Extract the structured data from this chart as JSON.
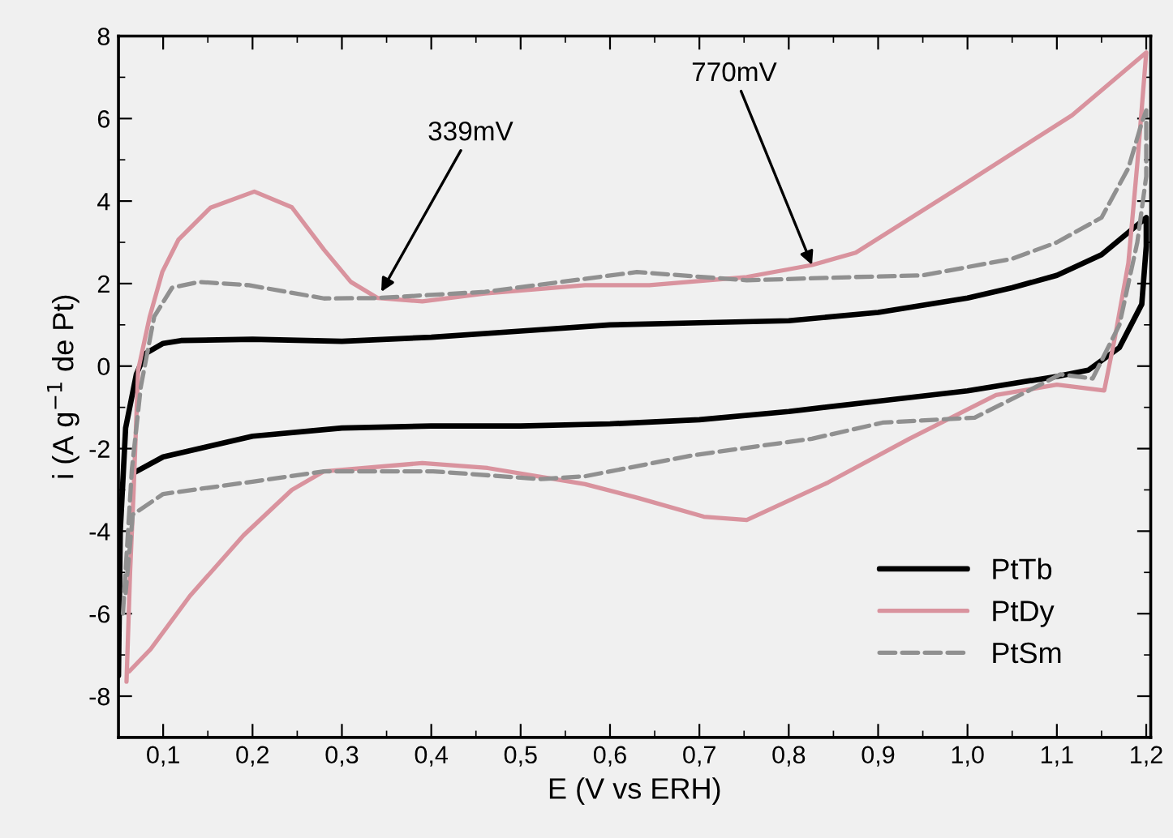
{
  "chart_data": {
    "type": "line",
    "xlabel": "E (V vs ERH)",
    "ylabel": "i (A g$^{−1}$ de Pt)",
    "xlim": [
      0.05,
      1.205
    ],
    "ylim": [
      -9,
      8
    ],
    "xticks": [
      {
        "value": 0.1,
        "label": "0,1"
      },
      {
        "value": 0.2,
        "label": "0,2"
      },
      {
        "value": 0.3,
        "label": "0,3"
      },
      {
        "value": 0.4,
        "label": "0,4"
      },
      {
        "value": 0.5,
        "label": "0,5"
      },
      {
        "value": 0.6,
        "label": "0,6"
      },
      {
        "value": 0.7,
        "label": "0,7"
      },
      {
        "value": 0.8,
        "label": "0,8"
      },
      {
        "value": 0.9,
        "label": "0,9"
      },
      {
        "value": 1.0,
        "label": "1,0"
      },
      {
        "value": 1.1,
        "label": "1,1"
      },
      {
        "value": 1.2,
        "label": "1,2"
      }
    ],
    "yticks": [
      -8,
      -6,
      -4,
      -2,
      0,
      2,
      4,
      6,
      8
    ],
    "grid": false,
    "legend": "bottom right",
    "annotations": [
      {
        "text": "339mV",
        "x": 0.344,
        "y": 1.8
      },
      {
        "text": "770mV",
        "x": 0.826,
        "y": 2.45
      }
    ],
    "series": [
      {
        "name": "PtTb",
        "color": "#000000",
        "line_style": "solid",
        "x": [
          0.05,
          0.052,
          0.058,
          0.07,
          0.08,
          0.1,
          0.12,
          0.2,
          0.3,
          0.4,
          0.5,
          0.6,
          0.7,
          0.8,
          0.9,
          1.0,
          1.05,
          1.1,
          1.15,
          1.2,
          1.2,
          1.195,
          1.17,
          1.135,
          1.1,
          1.0,
          0.9,
          0.8,
          0.7,
          0.6,
          0.5,
          0.4,
          0.3,
          0.2,
          0.15,
          0.1,
          0.066
        ],
        "values": [
          -7.5,
          -4.0,
          -1.5,
          -0.2,
          0.3,
          0.55,
          0.62,
          0.65,
          0.6,
          0.7,
          0.85,
          1.0,
          1.05,
          1.1,
          1.3,
          1.65,
          1.9,
          2.2,
          2.7,
          3.6,
          2.9,
          1.5,
          0.45,
          -0.1,
          -0.25,
          -0.6,
          -0.85,
          -1.1,
          -1.3,
          -1.4,
          -1.45,
          -1.45,
          -1.5,
          -1.7,
          -1.95,
          -2.2,
          -2.6
        ]
      },
      {
        "name": "PtDy",
        "color": "#d9939e",
        "line_style": "solid",
        "x": [
          0.059,
          0.063,
          0.067,
          0.072,
          0.085,
          0.099,
          0.117,
          0.153,
          0.202,
          0.244,
          0.28,
          0.31,
          0.34,
          0.39,
          0.46,
          0.572,
          0.644,
          0.753,
          0.826,
          0.875,
          0.995,
          1.117,
          1.2,
          1.19,
          1.18,
          1.165,
          1.153,
          1.1,
          1.032,
          0.935,
          0.844,
          0.753,
          0.705,
          0.632,
          0.572,
          0.463,
          0.39,
          0.28,
          0.244,
          0.19,
          0.13,
          0.086,
          0.062
        ],
        "values": [
          -7.65,
          -5.0,
          -3.0,
          -0.1,
          1.2,
          2.28,
          3.06,
          3.84,
          4.23,
          3.85,
          2.82,
          2.04,
          1.65,
          1.57,
          1.76,
          1.96,
          1.96,
          2.16,
          2.45,
          2.75,
          4.39,
          6.08,
          7.6,
          4.9,
          2.5,
          0.7,
          -0.59,
          -0.45,
          -0.7,
          -1.76,
          -2.82,
          -3.73,
          -3.65,
          -3.2,
          -2.86,
          -2.47,
          -2.35,
          -2.55,
          -3.0,
          -4.1,
          -5.57,
          -6.86,
          -7.4
        ]
      },
      {
        "name": "PtSm",
        "color": "#909090",
        "line_style": "dashed",
        "x": [
          0.055,
          0.065,
          0.075,
          0.09,
          0.11,
          0.14,
          0.196,
          0.28,
          0.34,
          0.46,
          0.63,
          0.753,
          0.875,
          0.95,
          1.05,
          1.1,
          1.15,
          1.18,
          1.195,
          1.2,
          1.2,
          1.19,
          1.17,
          1.14,
          1.104,
          1.068,
          1.008,
          0.905,
          0.826,
          0.693,
          0.572,
          0.523,
          0.402,
          0.28,
          0.2,
          0.1,
          0.066,
          0.058
        ],
        "values": [
          -6.0,
          -2.5,
          -0.5,
          1.2,
          1.9,
          2.04,
          1.96,
          1.64,
          1.65,
          1.8,
          2.28,
          2.08,
          2.16,
          2.2,
          2.6,
          3.0,
          3.6,
          4.8,
          5.9,
          6.2,
          4.6,
          3.0,
          1.0,
          -0.3,
          -0.2,
          -0.6,
          -1.25,
          -1.37,
          -1.76,
          -2.16,
          -2.67,
          -2.74,
          -2.55,
          -2.55,
          -2.8,
          -3.1,
          -3.6,
          -5.5
        ]
      }
    ]
  }
}
